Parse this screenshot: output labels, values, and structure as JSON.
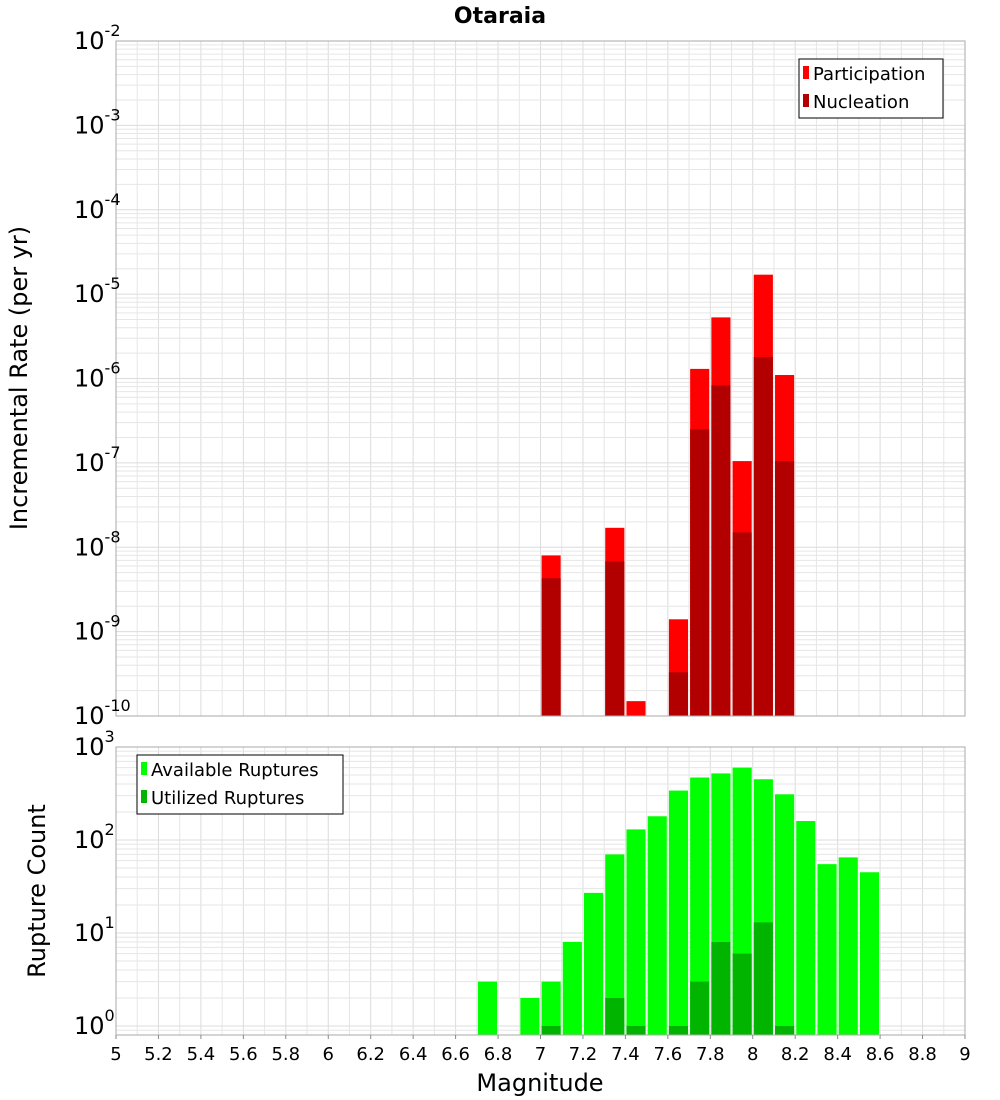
{
  "chart_data": [
    {
      "type": "bar",
      "title": "Otaraia",
      "ylabel": "Incremental Rate (per yr)",
      "xlabel": "",
      "yscale": "log",
      "ylim": [
        1e-10,
        0.01
      ],
      "xlim": [
        5,
        9
      ],
      "ytick_exponents": [
        "-2",
        "-3",
        "-4",
        "-5",
        "-6",
        "-7",
        "-8",
        "-9",
        "-10"
      ],
      "legend": {
        "position": "top-right",
        "entries": [
          "Participation",
          "Nucleation"
        ]
      },
      "grid": true,
      "series": [
        {
          "name": "Participation",
          "color": "#ff0000",
          "x": [
            7.05,
            7.35,
            7.45,
            7.65,
            7.75,
            7.85,
            7.95,
            8.05,
            8.15
          ],
          "values": [
            8e-09,
            1.7e-08,
            1.5e-10,
            1.4e-09,
            1.3e-06,
            5.3e-06,
            1.05e-07,
            1.7e-05,
            1.1e-06
          ]
        },
        {
          "name": "Nucleation",
          "color": "#b20000",
          "x": [
            7.05,
            7.35,
            7.65,
            7.75,
            7.85,
            7.95,
            8.05,
            8.15
          ],
          "values": [
            4.3e-09,
            6.8e-09,
            3.3e-10,
            2.5e-07,
            8.3e-07,
            1.5e-08,
            1.8e-06,
            1.05e-07
          ]
        }
      ]
    },
    {
      "type": "bar",
      "title": "",
      "ylabel": "Rupture Count",
      "xlabel": "Magnitude",
      "yscale": "log",
      "ylim": [
        0.8,
        1000
      ],
      "xlim": [
        5,
        9
      ],
      "ytick_exponents": [
        "3",
        "2",
        "1",
        "0"
      ],
      "x_ticks": [
        "5",
        "5.2",
        "5.4",
        "5.6",
        "5.8",
        "6",
        "6.2",
        "6.4",
        "6.6",
        "6.8",
        "7",
        "7.2",
        "7.4",
        "7.6",
        "7.8",
        "8",
        "8.2",
        "8.4",
        "8.6",
        "8.8",
        "9"
      ],
      "legend": {
        "position": "top-left",
        "entries": [
          "Available Ruptures",
          "Utilized Ruptures"
        ]
      },
      "grid": true,
      "series": [
        {
          "name": "Available Ruptures",
          "color": "#00ff00",
          "x": [
            6.75,
            6.95,
            7.05,
            7.15,
            7.25,
            7.35,
            7.45,
            7.55,
            7.65,
            7.75,
            7.85,
            7.95,
            8.05,
            8.15,
            8.25,
            8.35,
            8.45,
            8.55
          ],
          "values": [
            3,
            2,
            3,
            8,
            27,
            70,
            130,
            180,
            340,
            470,
            520,
            600,
            450,
            310,
            160,
            55,
            65,
            45
          ]
        },
        {
          "name": "Utilized Ruptures",
          "color": "#00b400",
          "x": [
            7.05,
            7.35,
            7.45,
            7.65,
            7.75,
            7.85,
            7.95,
            8.05,
            8.15
          ],
          "values": [
            1,
            2,
            1,
            1,
            3,
            8,
            6,
            13,
            1
          ]
        }
      ]
    }
  ]
}
